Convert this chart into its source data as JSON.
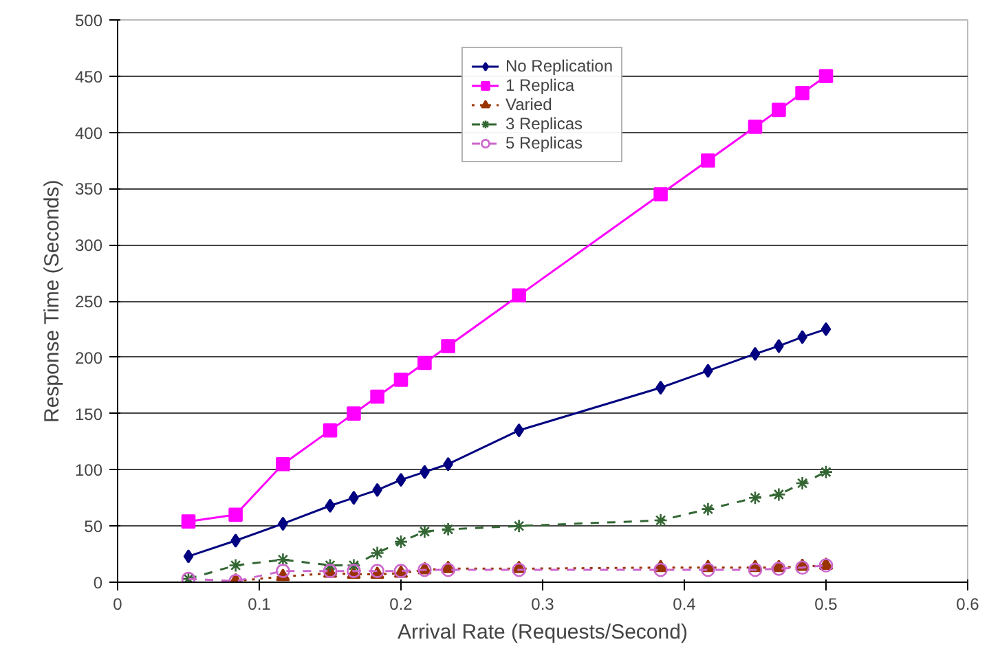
{
  "chart_data": {
    "type": "line",
    "xlabel": "Arrival Rate (Requests/Second)",
    "ylabel": "Response Time (Seconds)",
    "x": [
      0.05,
      0.0833,
      0.1167,
      0.15,
      0.1667,
      0.1833,
      0.2,
      0.2167,
      0.2333,
      0.2833,
      0.3833,
      0.4167,
      0.45,
      0.4667,
      0.4833,
      0.5
    ],
    "series": [
      {
        "name": "No Replication",
        "color": "#000080",
        "marker": "diamond",
        "line_style": "solid",
        "values": [
          23,
          37,
          52,
          68,
          75,
          82,
          91,
          98,
          105,
          135,
          173,
          188,
          203,
          210,
          218,
          225
        ]
      },
      {
        "name": "1 Replica",
        "color": "#ff00ff",
        "marker": "square",
        "line_style": "solid",
        "values": [
          54,
          60,
          105,
          135,
          150,
          165,
          180,
          195,
          210,
          255,
          345,
          375,
          405,
          420,
          435,
          450
        ]
      },
      {
        "name": "Varied",
        "color": "#993300",
        "marker": "triangle",
        "line_style": "dotted",
        "values": [
          null,
          1,
          5,
          8,
          7,
          7,
          8,
          11,
          12,
          12,
          13,
          13,
          13,
          13,
          14,
          15
        ]
      },
      {
        "name": "3 Replicas",
        "color": "#336633",
        "marker": "cross",
        "line_style": "dashed",
        "values": [
          3,
          15,
          20,
          15,
          15,
          26,
          36,
          45,
          47,
          50,
          55,
          65,
          75,
          78,
          88,
          98
        ]
      },
      {
        "name": "5 Replicas",
        "color": "#cc66cc",
        "marker": "circle",
        "line_style": "dashed",
        "values": [
          3,
          1,
          10,
          10,
          10,
          10,
          10,
          11,
          11,
          11,
          11,
          11,
          11,
          12,
          13,
          15
        ]
      }
    ],
    "xlim": [
      0,
      0.6
    ],
    "xticks": [
      0,
      0.1,
      0.2,
      0.3,
      0.4,
      0.5,
      0.6
    ],
    "ylim": [
      0,
      500
    ],
    "yticks": [
      0,
      50,
      100,
      150,
      200,
      250,
      300,
      350,
      400,
      450,
      500
    ],
    "grid": "y",
    "legend": "top"
  }
}
